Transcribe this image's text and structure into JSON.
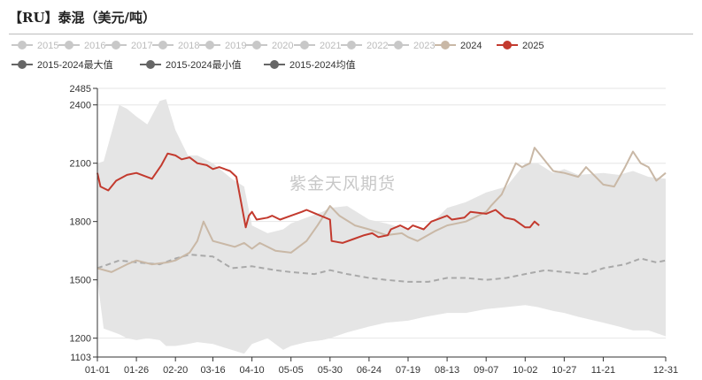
{
  "title": "【RU】泰混（美元/吨）",
  "watermark": "紫金天风期货",
  "colors": {
    "inactive": "#c8c8c8",
    "y2024": "#c9b8a6",
    "y2025": "#c33a2e",
    "band": "#e5e5e5",
    "avg": "#a9a9a9",
    "stat_legend": "#666666",
    "axis": "#333333",
    "grid": "#e6e6e6"
  },
  "chart_data": {
    "type": "line",
    "title": "【RU】泰混（美元/吨）",
    "xlabel": "",
    "ylabel": "",
    "x_ticks": [
      "01-01",
      "01-26",
      "02-20",
      "03-16",
      "04-10",
      "05-05",
      "05-30",
      "06-24",
      "07-19",
      "08-13",
      "09-07",
      "10-02",
      "10-27",
      "11-21",
      "12-31"
    ],
    "y_ticks": [
      1103,
      1200,
      1500,
      1800,
      2100,
      2400,
      2485
    ],
    "ylim": [
      1103,
      2485
    ],
    "grid": "horizontal",
    "legend_placement": "top",
    "legend": [
      {
        "label": "2015",
        "active": false,
        "kind": "year"
      },
      {
        "label": "2016",
        "active": false,
        "kind": "year"
      },
      {
        "label": "2017",
        "active": false,
        "kind": "year"
      },
      {
        "label": "2018",
        "active": false,
        "kind": "year"
      },
      {
        "label": "2019",
        "active": false,
        "kind": "year"
      },
      {
        "label": "2020",
        "active": false,
        "kind": "year"
      },
      {
        "label": "2021",
        "active": false,
        "kind": "year"
      },
      {
        "label": "2022",
        "active": false,
        "kind": "year"
      },
      {
        "label": "2023",
        "active": false,
        "kind": "year"
      },
      {
        "label": "2024",
        "active": true,
        "kind": "y2024"
      },
      {
        "label": "2025",
        "active": true,
        "kind": "y2025"
      },
      {
        "label": "2015-2024最大值",
        "active": true,
        "kind": "stat"
      },
      {
        "label": "2015-2024最小值",
        "active": true,
        "kind": "stat"
      },
      {
        "label": "2015-2024均值",
        "active": true,
        "kind": "stat"
      }
    ],
    "band": {
      "x": [
        "01-01",
        "01-05",
        "01-15",
        "01-20",
        "01-26",
        "02-02",
        "02-10",
        "02-14",
        "02-20",
        "02-28",
        "03-06",
        "03-16",
        "03-28",
        "04-05",
        "04-10",
        "04-20",
        "04-30",
        "05-05",
        "05-15",
        "05-25",
        "05-30",
        "06-10",
        "06-24",
        "07-05",
        "07-19",
        "07-30",
        "08-13",
        "08-25",
        "09-07",
        "09-20",
        "10-02",
        "10-10",
        "10-20",
        "10-27",
        "11-05",
        "11-21",
        "12-01",
        "12-10",
        "12-20",
        "12-31"
      ],
      "max": [
        2100,
        2110,
        2400,
        2380,
        2340,
        2300,
        2420,
        2430,
        2270,
        2140,
        2140,
        2100,
        2020,
        1980,
        1780,
        1740,
        1760,
        1790,
        1820,
        1850,
        1870,
        1880,
        1810,
        1790,
        1760,
        1760,
        1870,
        1900,
        1950,
        1980,
        2100,
        2100,
        2050,
        2070,
        2040,
        2050,
        2040,
        2060,
        2030,
        2020
      ],
      "min": [
        1500,
        1250,
        1220,
        1200,
        1190,
        1200,
        1190,
        1160,
        1160,
        1170,
        1180,
        1170,
        1140,
        1120,
        1170,
        1200,
        1140,
        1160,
        1180,
        1190,
        1200,
        1230,
        1260,
        1280,
        1290,
        1310,
        1330,
        1330,
        1350,
        1360,
        1370,
        1360,
        1340,
        1330,
        1310,
        1280,
        1260,
        1240,
        1240,
        1210
      ]
    },
    "series": [
      {
        "name": "2015-2024均值",
        "style": "dashed",
        "x": [
          "01-01",
          "01-15",
          "01-26",
          "02-10",
          "02-20",
          "03-01",
          "03-16",
          "03-28",
          "04-10",
          "04-25",
          "05-05",
          "05-20",
          "05-30",
          "06-10",
          "06-24",
          "07-05",
          "07-19",
          "08-01",
          "08-13",
          "08-25",
          "09-07",
          "09-20",
          "10-02",
          "10-15",
          "10-27",
          "11-10",
          "11-21",
          "12-05",
          "12-15",
          "12-25",
          "12-31"
        ],
        "values": [
          1560,
          1600,
          1590,
          1580,
          1610,
          1630,
          1620,
          1560,
          1570,
          1550,
          1540,
          1530,
          1550,
          1530,
          1510,
          1500,
          1490,
          1490,
          1510,
          1510,
          1500,
          1510,
          1530,
          1550,
          1540,
          1530,
          1560,
          1580,
          1610,
          1590,
          1600
        ]
      },
      {
        "name": "2024",
        "x": [
          "01-01",
          "01-10",
          "01-20",
          "01-26",
          "02-05",
          "02-15",
          "02-20",
          "03-01",
          "03-06",
          "03-10",
          "03-16",
          "03-30",
          "04-05",
          "04-10",
          "04-15",
          "04-25",
          "05-05",
          "05-15",
          "05-22",
          "05-30",
          "06-05",
          "06-15",
          "06-24",
          "07-05",
          "07-15",
          "07-19",
          "07-25",
          "08-05",
          "08-13",
          "08-25",
          "09-07",
          "09-10",
          "09-17",
          "09-22",
          "09-26",
          "09-30",
          "10-05",
          "10-08",
          "10-20",
          "10-27",
          "11-05",
          "11-10",
          "11-21",
          "11-28",
          "12-05",
          "12-10",
          "12-15",
          "12-20",
          "12-25",
          "12-31"
        ],
        "values": [
          1560,
          1540,
          1580,
          1600,
          1580,
          1590,
          1600,
          1640,
          1700,
          1800,
          1700,
          1670,
          1690,
          1660,
          1690,
          1650,
          1640,
          1700,
          1780,
          1880,
          1830,
          1780,
          1760,
          1730,
          1740,
          1720,
          1700,
          1750,
          1780,
          1800,
          1850,
          1880,
          1940,
          2030,
          2100,
          2080,
          2100,
          2180,
          2060,
          2050,
          2030,
          2080,
          1990,
          1980,
          2080,
          2160,
          2100,
          2080,
          2010,
          2050
        ]
      },
      {
        "name": "2025",
        "x": [
          "01-01",
          "01-03",
          "01-08",
          "01-13",
          "01-20",
          "01-26",
          "02-05",
          "02-11",
          "02-15",
          "02-20",
          "02-24",
          "03-01",
          "03-06",
          "03-12",
          "03-16",
          "03-20",
          "03-27",
          "03-31",
          "04-03",
          "04-06",
          "04-08",
          "04-10",
          "04-13",
          "04-20",
          "04-23",
          "04-28",
          "05-05",
          "05-12",
          "05-15",
          "05-21",
          "05-30",
          "05-31",
          "06-07",
          "06-14",
          "06-21",
          "06-26",
          "06-30",
          "07-06",
          "07-08",
          "07-14",
          "07-19",
          "07-22",
          "07-29",
          "08-03",
          "08-13",
          "08-16",
          "08-24",
          "08-28",
          "09-07",
          "09-13",
          "09-19",
          "09-25",
          "10-02",
          "10-05",
          "10-08",
          "10-11"
        ],
        "values": [
          2050,
          1980,
          1960,
          2010,
          2040,
          2050,
          2020,
          2090,
          2150,
          2140,
          2120,
          2130,
          2100,
          2090,
          2070,
          2080,
          2060,
          2030,
          1900,
          1770,
          1830,
          1850,
          1810,
          1820,
          1830,
          1810,
          1830,
          1850,
          1860,
          1840,
          1810,
          1700,
          1690,
          1710,
          1730,
          1740,
          1720,
          1730,
          1760,
          1780,
          1760,
          1780,
          1760,
          1800,
          1830,
          1810,
          1820,
          1850,
          1840,
          1860,
          1820,
          1810,
          1770,
          1770,
          1800,
          1780
        ]
      }
    ]
  }
}
